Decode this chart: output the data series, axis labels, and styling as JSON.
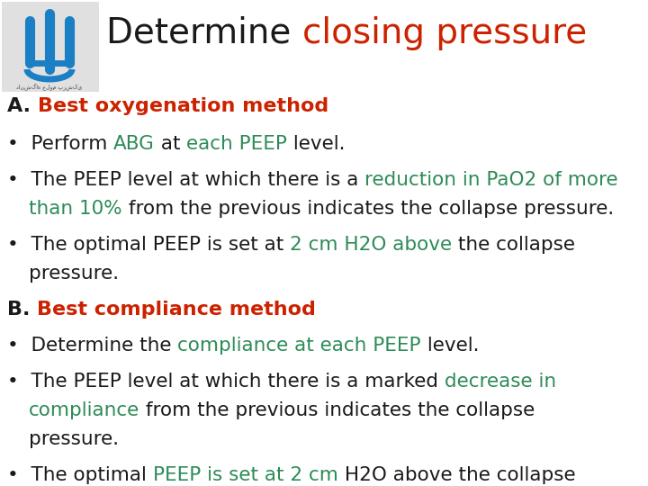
{
  "bg_color": "#ffffff",
  "black": "#1a1a1a",
  "red": "#cc2200",
  "green": "#2d8b57",
  "title_fontsize": 28,
  "body_fontsize": 15.5,
  "header_fontsize": 16.0,
  "fig_width": 7.2,
  "fig_height": 5.4,
  "dpi": 100
}
